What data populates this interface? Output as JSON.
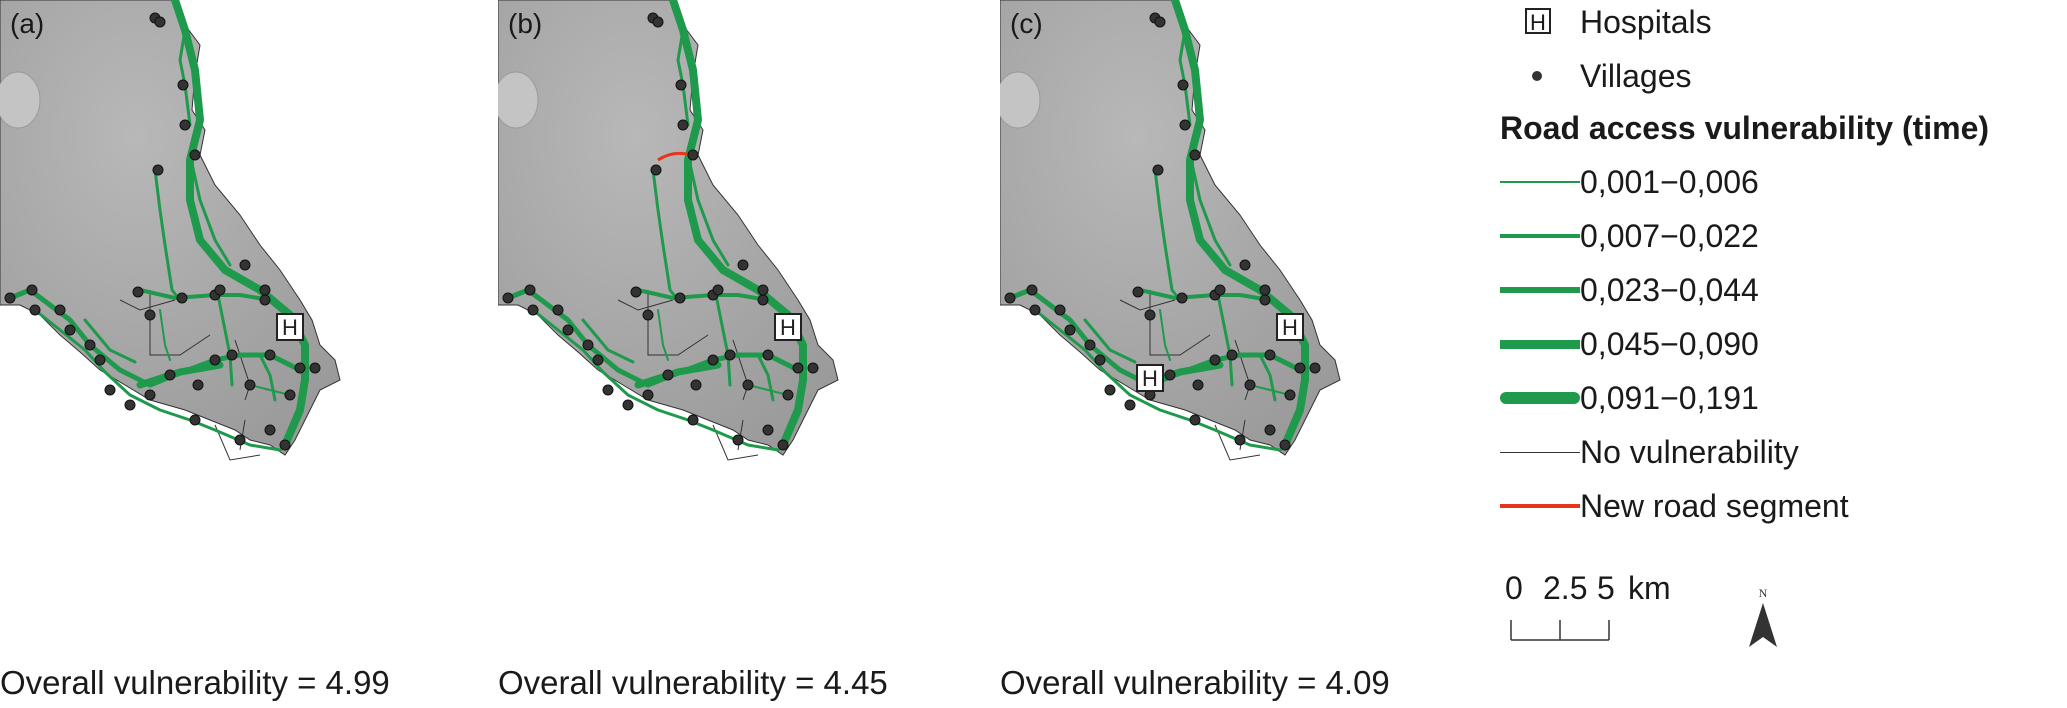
{
  "panels": [
    {
      "letter": "(a)",
      "caption": "Overall vulnerability = 4.99",
      "new_road": false,
      "hospitals": 1
    },
    {
      "letter": "(b)",
      "caption": "Overall vulnerability = 4.45",
      "new_road": true,
      "hospitals": 1
    },
    {
      "letter": "(c)",
      "caption": "Overall vulnerability = 4.09",
      "new_road": false,
      "hospitals": 2
    }
  ],
  "legend": {
    "hospitals_label": "Hospitals",
    "hospital_symbol": "H",
    "villages_label": "Villages",
    "title": "Road access vulnerability (time)",
    "classes": [
      {
        "label": "0,001−0,006"
      },
      {
        "label": "0,007−0,022"
      },
      {
        "label": "0,023−0,044"
      },
      {
        "label": "0,045−0,090"
      },
      {
        "label": "0,091−0,191"
      }
    ],
    "no_vulnerability_label": "No vulnerability",
    "new_road_label": "New road segment"
  },
  "scale_bar": {
    "tick0": "0",
    "tick1": "2.5",
    "tick2": "5",
    "unit": "km"
  },
  "north_arrow": {
    "label": "N"
  },
  "colors": {
    "road": "#1f9a4c",
    "new_road": "#e8341c",
    "terrain": "#a8a8a8",
    "village": "#333333"
  }
}
